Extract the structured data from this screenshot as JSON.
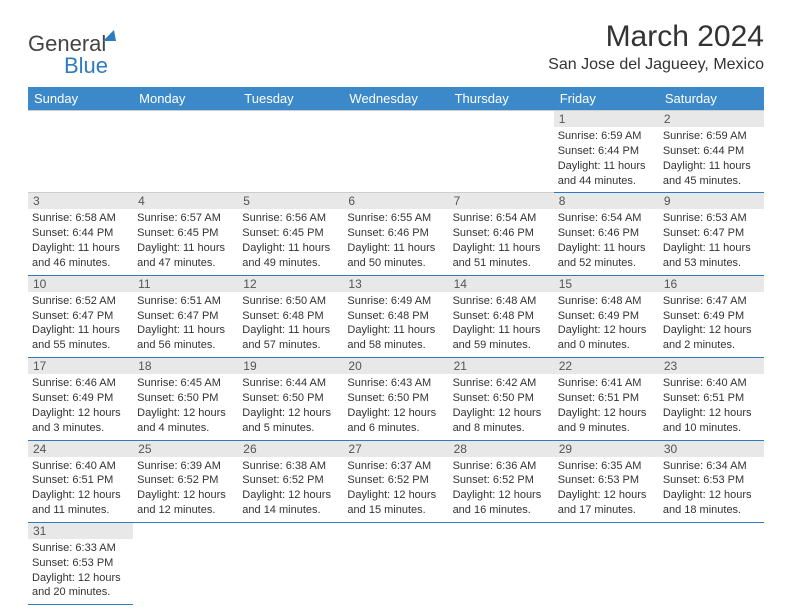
{
  "logo": {
    "text1": "General",
    "text2": "Blue"
  },
  "title": "March 2024",
  "location": "San Jose del Jagueey, Mexico",
  "weekdays": [
    "Sunday",
    "Monday",
    "Tuesday",
    "Wednesday",
    "Thursday",
    "Friday",
    "Saturday"
  ],
  "colors": {
    "header_bg": "#3b89c9",
    "header_fg": "#ffffff",
    "daynum_bg": "#e8e8e8",
    "rule": "#2e7cc0",
    "text": "#333333"
  },
  "weeks": [
    [
      null,
      null,
      null,
      null,
      null,
      {
        "d": "1",
        "sunrise": "Sunrise: 6:59 AM",
        "sunset": "Sunset: 6:44 PM",
        "daylight": "Daylight: 11 hours and 44 minutes."
      },
      {
        "d": "2",
        "sunrise": "Sunrise: 6:59 AM",
        "sunset": "Sunset: 6:44 PM",
        "daylight": "Daylight: 11 hours and 45 minutes."
      }
    ],
    [
      {
        "d": "3",
        "sunrise": "Sunrise: 6:58 AM",
        "sunset": "Sunset: 6:44 PM",
        "daylight": "Daylight: 11 hours and 46 minutes."
      },
      {
        "d": "4",
        "sunrise": "Sunrise: 6:57 AM",
        "sunset": "Sunset: 6:45 PM",
        "daylight": "Daylight: 11 hours and 47 minutes."
      },
      {
        "d": "5",
        "sunrise": "Sunrise: 6:56 AM",
        "sunset": "Sunset: 6:45 PM",
        "daylight": "Daylight: 11 hours and 49 minutes."
      },
      {
        "d": "6",
        "sunrise": "Sunrise: 6:55 AM",
        "sunset": "Sunset: 6:46 PM",
        "daylight": "Daylight: 11 hours and 50 minutes."
      },
      {
        "d": "7",
        "sunrise": "Sunrise: 6:54 AM",
        "sunset": "Sunset: 6:46 PM",
        "daylight": "Daylight: 11 hours and 51 minutes."
      },
      {
        "d": "8",
        "sunrise": "Sunrise: 6:54 AM",
        "sunset": "Sunset: 6:46 PM",
        "daylight": "Daylight: 11 hours and 52 minutes."
      },
      {
        "d": "9",
        "sunrise": "Sunrise: 6:53 AM",
        "sunset": "Sunset: 6:47 PM",
        "daylight": "Daylight: 11 hours and 53 minutes."
      }
    ],
    [
      {
        "d": "10",
        "sunrise": "Sunrise: 6:52 AM",
        "sunset": "Sunset: 6:47 PM",
        "daylight": "Daylight: 11 hours and 55 minutes."
      },
      {
        "d": "11",
        "sunrise": "Sunrise: 6:51 AM",
        "sunset": "Sunset: 6:47 PM",
        "daylight": "Daylight: 11 hours and 56 minutes."
      },
      {
        "d": "12",
        "sunrise": "Sunrise: 6:50 AM",
        "sunset": "Sunset: 6:48 PM",
        "daylight": "Daylight: 11 hours and 57 minutes."
      },
      {
        "d": "13",
        "sunrise": "Sunrise: 6:49 AM",
        "sunset": "Sunset: 6:48 PM",
        "daylight": "Daylight: 11 hours and 58 minutes."
      },
      {
        "d": "14",
        "sunrise": "Sunrise: 6:48 AM",
        "sunset": "Sunset: 6:48 PM",
        "daylight": "Daylight: 11 hours and 59 minutes."
      },
      {
        "d": "15",
        "sunrise": "Sunrise: 6:48 AM",
        "sunset": "Sunset: 6:49 PM",
        "daylight": "Daylight: 12 hours and 0 minutes."
      },
      {
        "d": "16",
        "sunrise": "Sunrise: 6:47 AM",
        "sunset": "Sunset: 6:49 PM",
        "daylight": "Daylight: 12 hours and 2 minutes."
      }
    ],
    [
      {
        "d": "17",
        "sunrise": "Sunrise: 6:46 AM",
        "sunset": "Sunset: 6:49 PM",
        "daylight": "Daylight: 12 hours and 3 minutes."
      },
      {
        "d": "18",
        "sunrise": "Sunrise: 6:45 AM",
        "sunset": "Sunset: 6:50 PM",
        "daylight": "Daylight: 12 hours and 4 minutes."
      },
      {
        "d": "19",
        "sunrise": "Sunrise: 6:44 AM",
        "sunset": "Sunset: 6:50 PM",
        "daylight": "Daylight: 12 hours and 5 minutes."
      },
      {
        "d": "20",
        "sunrise": "Sunrise: 6:43 AM",
        "sunset": "Sunset: 6:50 PM",
        "daylight": "Daylight: 12 hours and 6 minutes."
      },
      {
        "d": "21",
        "sunrise": "Sunrise: 6:42 AM",
        "sunset": "Sunset: 6:50 PM",
        "daylight": "Daylight: 12 hours and 8 minutes."
      },
      {
        "d": "22",
        "sunrise": "Sunrise: 6:41 AM",
        "sunset": "Sunset: 6:51 PM",
        "daylight": "Daylight: 12 hours and 9 minutes."
      },
      {
        "d": "23",
        "sunrise": "Sunrise: 6:40 AM",
        "sunset": "Sunset: 6:51 PM",
        "daylight": "Daylight: 12 hours and 10 minutes."
      }
    ],
    [
      {
        "d": "24",
        "sunrise": "Sunrise: 6:40 AM",
        "sunset": "Sunset: 6:51 PM",
        "daylight": "Daylight: 12 hours and 11 minutes."
      },
      {
        "d": "25",
        "sunrise": "Sunrise: 6:39 AM",
        "sunset": "Sunset: 6:52 PM",
        "daylight": "Daylight: 12 hours and 12 minutes."
      },
      {
        "d": "26",
        "sunrise": "Sunrise: 6:38 AM",
        "sunset": "Sunset: 6:52 PM",
        "daylight": "Daylight: 12 hours and 14 minutes."
      },
      {
        "d": "27",
        "sunrise": "Sunrise: 6:37 AM",
        "sunset": "Sunset: 6:52 PM",
        "daylight": "Daylight: 12 hours and 15 minutes."
      },
      {
        "d": "28",
        "sunrise": "Sunrise: 6:36 AM",
        "sunset": "Sunset: 6:52 PM",
        "daylight": "Daylight: 12 hours and 16 minutes."
      },
      {
        "d": "29",
        "sunrise": "Sunrise: 6:35 AM",
        "sunset": "Sunset: 6:53 PM",
        "daylight": "Daylight: 12 hours and 17 minutes."
      },
      {
        "d": "30",
        "sunrise": "Sunrise: 6:34 AM",
        "sunset": "Sunset: 6:53 PM",
        "daylight": "Daylight: 12 hours and 18 minutes."
      }
    ],
    [
      {
        "d": "31",
        "sunrise": "Sunrise: 6:33 AM",
        "sunset": "Sunset: 6:53 PM",
        "daylight": "Daylight: 12 hours and 20 minutes."
      },
      null,
      null,
      null,
      null,
      null,
      null
    ]
  ]
}
